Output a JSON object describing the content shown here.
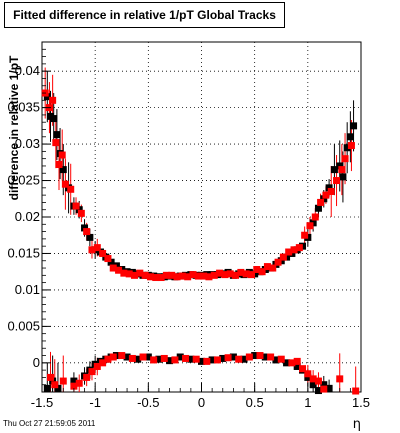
{
  "chart_data": {
    "type": "scatter",
    "title": "Fitted difference in relative 1/pT  Global Tracks",
    "ylabel": "difference in relative 1/pT",
    "xlabel": "η",
    "xlim": [
      -1.5,
      1.5
    ],
    "ylim": [
      -0.004,
      0.044
    ],
    "xticks": [
      "-1.5",
      "-1",
      "-0.5",
      "0",
      "0.5",
      "1",
      "1.5"
    ],
    "yticks": [
      "0",
      "0.005",
      "0.01",
      "0.015",
      "0.02",
      "0.025",
      "0.03",
      "0.035",
      "0.04"
    ],
    "grid": true,
    "colors": {
      "black": "#000000",
      "red": "#ff0000"
    },
    "series": [
      {
        "color": "black",
        "upper": [
          [
            -1.45,
            0.0365
          ],
          [
            -1.42,
            0.0338
          ],
          [
            -1.39,
            0.0335
          ],
          [
            -1.36,
            0.0313
          ],
          [
            -1.33,
            0.0287
          ],
          [
            -1.3,
            0.0265
          ],
          [
            -1.25,
            0.024
          ],
          [
            -1.2,
            0.0215
          ],
          [
            -1.15,
            0.021
          ],
          [
            -1.1,
            0.0185
          ],
          [
            -1.05,
            0.0172
          ],
          [
            -1.0,
            0.0155
          ],
          [
            -0.95,
            0.0152
          ],
          [
            -0.9,
            0.0145
          ],
          [
            -0.85,
            0.0138
          ],
          [
            -0.8,
            0.0133
          ],
          [
            -0.75,
            0.0128
          ],
          [
            -0.7,
            0.0125
          ],
          [
            -0.65,
            0.0124
          ],
          [
            -0.6,
            0.0122
          ],
          [
            -0.55,
            0.012
          ],
          [
            -0.5,
            0.012
          ],
          [
            -0.45,
            0.0119
          ],
          [
            -0.4,
            0.0118
          ],
          [
            -0.35,
            0.0118
          ],
          [
            -0.3,
            0.0119
          ],
          [
            -0.25,
            0.0118
          ],
          [
            -0.2,
            0.0119
          ],
          [
            -0.15,
            0.012
          ],
          [
            -0.1,
            0.0121
          ],
          [
            -0.05,
            0.012
          ],
          [
            0.0,
            0.012
          ],
          [
            0.05,
            0.0121
          ],
          [
            0.1,
            0.0121
          ],
          [
            0.15,
            0.0121
          ],
          [
            0.2,
            0.0122
          ],
          [
            0.25,
            0.0124
          ],
          [
            0.3,
            0.012
          ],
          [
            0.35,
            0.0122
          ],
          [
            0.4,
            0.0121
          ],
          [
            0.45,
            0.0124
          ],
          [
            0.5,
            0.0122
          ],
          [
            0.55,
            0.0125
          ],
          [
            0.6,
            0.0128
          ],
          [
            0.65,
            0.013
          ],
          [
            0.7,
            0.0135
          ],
          [
            0.75,
            0.014
          ],
          [
            0.8,
            0.0145
          ],
          [
            0.85,
            0.015
          ],
          [
            0.9,
            0.0155
          ],
          [
            0.95,
            0.016
          ],
          [
            1.0,
            0.0172
          ],
          [
            1.05,
            0.0192
          ],
          [
            1.1,
            0.0212
          ],
          [
            1.15,
            0.0225
          ],
          [
            1.2,
            0.024
          ],
          [
            1.25,
            0.0265
          ],
          [
            1.3,
            0.027
          ],
          [
            1.33,
            0.0255
          ],
          [
            1.37,
            0.0295
          ],
          [
            1.4,
            0.031
          ],
          [
            1.43,
            0.0325
          ]
        ],
        "lower": [
          [
            -1.45,
            -0.0035
          ],
          [
            -1.4,
            -0.0025
          ],
          [
            -1.35,
            -0.0035
          ],
          [
            -1.2,
            -0.0025
          ],
          [
            -1.1,
            -0.0018
          ],
          [
            -1.05,
            -0.001
          ],
          [
            -1.0,
            -0.0002
          ],
          [
            -0.95,
            0.0002
          ],
          [
            -0.9,
            0.0005
          ],
          [
            -0.85,
            0.0008
          ],
          [
            -0.8,
            0.001
          ],
          [
            -0.7,
            0.0008
          ],
          [
            -0.6,
            0.0005
          ],
          [
            -0.5,
            0.0008
          ],
          [
            -0.4,
            0.0005
          ],
          [
            -0.3,
            0.0003
          ],
          [
            -0.2,
            0.0008
          ],
          [
            -0.1,
            0.0005
          ],
          [
            0.0,
            0.0002
          ],
          [
            0.1,
            0.0004
          ],
          [
            0.2,
            0.0006
          ],
          [
            0.3,
            0.0008
          ],
          [
            0.4,
            0.0005
          ],
          [
            0.5,
            0.001
          ],
          [
            0.6,
            0.0008
          ],
          [
            0.7,
            0.0004
          ],
          [
            0.8,
            0.0
          ],
          [
            0.9,
            -0.0005
          ],
          [
            0.95,
            -0.001
          ],
          [
            1.0,
            -0.002
          ],
          [
            1.05,
            -0.003
          ],
          [
            1.1,
            -0.0038
          ],
          [
            1.15,
            -0.003
          ],
          [
            1.2,
            -0.0035
          ]
        ]
      },
      {
        "color": "red",
        "upper": [
          [
            -1.47,
            0.037
          ],
          [
            -1.43,
            0.035
          ],
          [
            -1.4,
            0.036
          ],
          [
            -1.37,
            0.0302
          ],
          [
            -1.34,
            0.0272
          ],
          [
            -1.31,
            0.0285
          ],
          [
            -1.28,
            0.0245
          ],
          [
            -1.23,
            0.0238
          ],
          [
            -1.18,
            0.0215
          ],
          [
            -1.13,
            0.0205
          ],
          [
            -1.08,
            0.018
          ],
          [
            -1.03,
            0.0155
          ],
          [
            -0.98,
            0.0158
          ],
          [
            -0.93,
            0.015
          ],
          [
            -0.88,
            0.0143
          ],
          [
            -0.83,
            0.013
          ],
          [
            -0.78,
            0.0127
          ],
          [
            -0.73,
            0.0123
          ],
          [
            -0.68,
            0.0122
          ],
          [
            -0.63,
            0.012
          ],
          [
            -0.58,
            0.0123
          ],
          [
            -0.53,
            0.012
          ],
          [
            -0.48,
            0.0118
          ],
          [
            -0.43,
            0.0117
          ],
          [
            -0.38,
            0.0117
          ],
          [
            -0.33,
            0.012
          ],
          [
            -0.28,
            0.012
          ],
          [
            -0.23,
            0.0118
          ],
          [
            -0.18,
            0.0119
          ],
          [
            -0.13,
            0.0118
          ],
          [
            -0.08,
            0.0121
          ],
          [
            -0.03,
            0.0119
          ],
          [
            0.02,
            0.0119
          ],
          [
            0.07,
            0.0118
          ],
          [
            0.12,
            0.012
          ],
          [
            0.17,
            0.0123
          ],
          [
            0.22,
            0.0121
          ],
          [
            0.27,
            0.0122
          ],
          [
            0.32,
            0.012
          ],
          [
            0.37,
            0.0124
          ],
          [
            0.42,
            0.0122
          ],
          [
            0.47,
            0.0121
          ],
          [
            0.52,
            0.0128
          ],
          [
            0.57,
            0.0125
          ],
          [
            0.62,
            0.0132
          ],
          [
            0.67,
            0.013
          ],
          [
            0.72,
            0.0138
          ],
          [
            0.77,
            0.0145
          ],
          [
            0.82,
            0.0152
          ],
          [
            0.87,
            0.0155
          ],
          [
            0.92,
            0.0158
          ],
          [
            0.97,
            0.0175
          ],
          [
            1.02,
            0.0188
          ],
          [
            1.07,
            0.02
          ],
          [
            1.12,
            0.022
          ],
          [
            1.17,
            0.023
          ],
          [
            1.22,
            0.0235
          ],
          [
            1.27,
            0.025
          ],
          [
            1.32,
            0.0265
          ],
          [
            1.35,
            0.028
          ],
          [
            1.41,
            0.0298
          ]
        ],
        "lower": [
          [
            -1.42,
            -0.002
          ],
          [
            -1.38,
            -0.003
          ],
          [
            -1.3,
            -0.0025
          ],
          [
            -1.2,
            -0.0032
          ],
          [
            -1.15,
            -0.0028
          ],
          [
            -1.08,
            -0.002
          ],
          [
            -1.03,
            -0.0012
          ],
          [
            -0.98,
            -0.0005
          ],
          [
            -0.93,
            0.0
          ],
          [
            -0.88,
            0.0005
          ],
          [
            -0.83,
            0.0008
          ],
          [
            -0.75,
            0.001
          ],
          [
            -0.65,
            0.0006
          ],
          [
            -0.55,
            0.0008
          ],
          [
            -0.45,
            0.0004
          ],
          [
            -0.35,
            0.0006
          ],
          [
            -0.25,
            0.0004
          ],
          [
            -0.15,
            0.0006
          ],
          [
            -0.05,
            0.0005
          ],
          [
            0.05,
            0.0002
          ],
          [
            0.15,
            0.0004
          ],
          [
            0.25,
            0.0007
          ],
          [
            0.35,
            0.0005
          ],
          [
            0.45,
            0.0008
          ],
          [
            0.55,
            0.001
          ],
          [
            0.65,
            0.0008
          ],
          [
            0.75,
            0.0005
          ],
          [
            0.85,
            0.0
          ],
          [
            0.9,
            0.0002
          ],
          [
            0.95,
            -0.0008
          ],
          [
            1.0,
            -0.0015
          ],
          [
            1.05,
            -0.0022
          ],
          [
            1.1,
            -0.0025
          ],
          [
            1.15,
            -0.0036
          ],
          [
            1.3,
            -0.0022
          ],
          [
            1.45,
            -0.004
          ]
        ]
      }
    ]
  },
  "footer": {
    "timestamp": "Thu Oct 27 21:59:05 2011"
  }
}
